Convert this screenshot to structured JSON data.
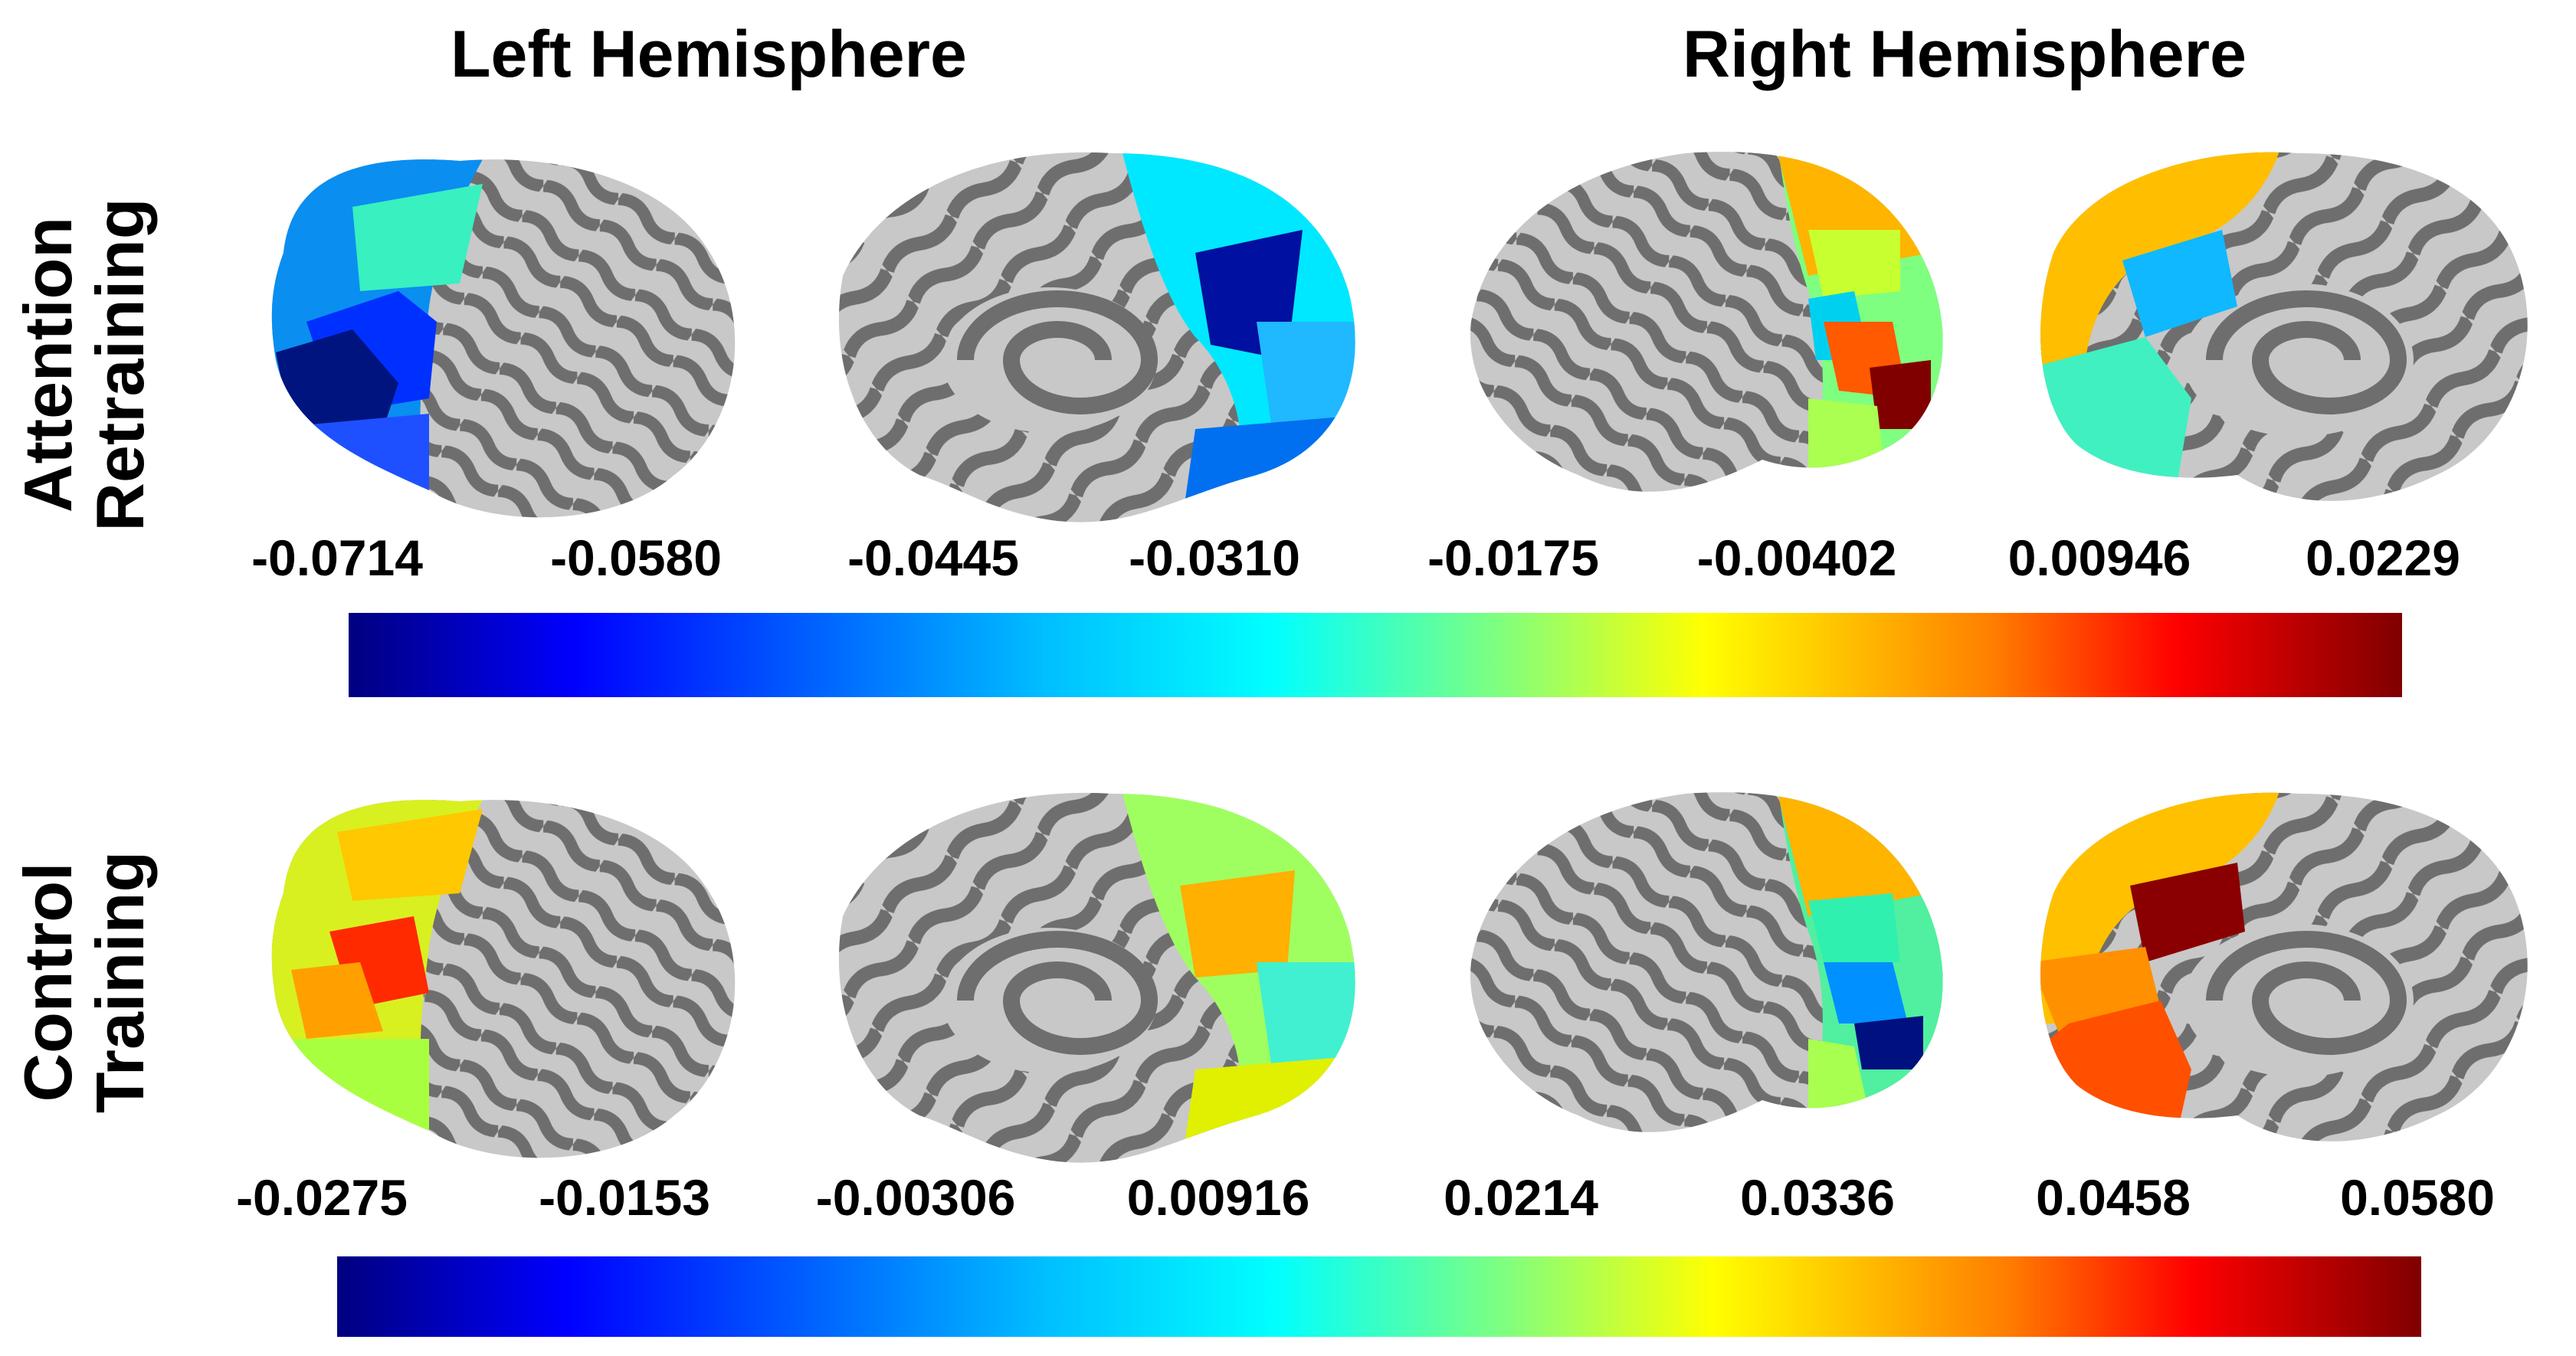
{
  "column_titles": {
    "left": "Left Hemisphere",
    "right": "Right Hemisphere"
  },
  "row_labels": {
    "top": [
      "Attention",
      "Retraining"
    ],
    "bottom": [
      "Control",
      "Training"
    ]
  },
  "colorbars": {
    "top": {
      "ticks": [
        "-0.0714",
        "-0.0580",
        "-0.0445",
        "-0.0310",
        "-0.0175",
        "-0.00402",
        "0.00946",
        "0.0229"
      ],
      "colormap": "jet"
    },
    "bottom": {
      "ticks": [
        "-0.0275",
        "-0.0153",
        "-0.00306",
        "0.00916",
        "0.0214",
        "0.0336",
        "0.0458",
        "0.0580"
      ],
      "colormap": "jet"
    }
  },
  "colors": {
    "cortex_light": "#c8c8c8",
    "cortex_dark": "#6e6e6e",
    "jet": [
      "#00007f",
      "#0000ff",
      "#007fff",
      "#00ffff",
      "#7fff7f",
      "#ffff00",
      "#ff7f00",
      "#ff0000",
      "#7f0000"
    ]
  },
  "brain_views": [
    "left-lateral",
    "left-medial",
    "right-lateral",
    "right-medial"
  ]
}
